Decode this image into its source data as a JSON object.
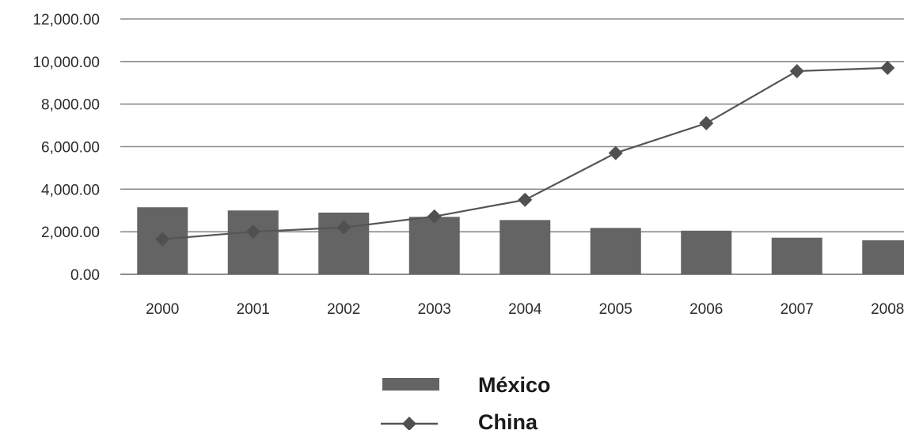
{
  "chart_data": {
    "type": "bar",
    "categories": [
      "2000",
      "2001",
      "2002",
      "2003",
      "2004",
      "2005",
      "2006",
      "2007",
      "2008"
    ],
    "series": [
      {
        "name": "México",
        "type": "bar",
        "values": [
          3150,
          3000,
          2900,
          2700,
          2550,
          2180,
          2050,
          1720,
          1600
        ]
      },
      {
        "name": "China",
        "type": "line",
        "marker": "diamond",
        "values": [
          1650,
          2000,
          2200,
          2720,
          3500,
          5700,
          7100,
          9550,
          9700
        ]
      }
    ],
    "y_ticks": [
      "0.00",
      "2,000.00",
      "4,000.00",
      "6,000.00",
      "8,000.00",
      "10,000.00",
      "12,000.00"
    ],
    "ylim": [
      0,
      12000
    ],
    "grid": true,
    "legend_position": "bottom-center",
    "colors": {
      "bar": "#646464",
      "line": "#555555",
      "marker": "#505050",
      "grid": "#8c8c8c"
    }
  }
}
